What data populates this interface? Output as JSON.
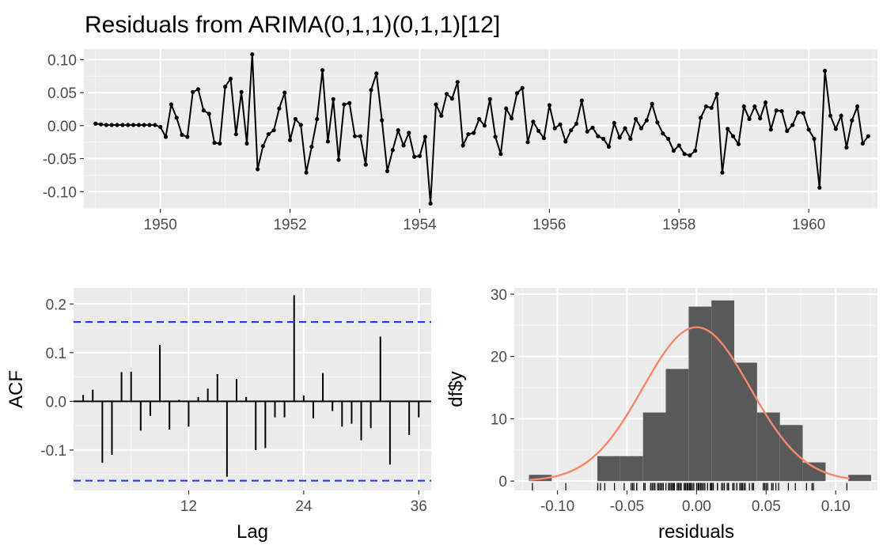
{
  "colors": {
    "panel_bg": "#ebebeb",
    "grid_major": "#ffffff",
    "series": "#000000",
    "ci_lines": "#1f3cff",
    "hist_bars": "#595959",
    "density_curve": "#f4896b"
  },
  "chart_data": [
    {
      "type": "line",
      "title": "Residuals from ARIMA(0,1,1)(0,1,1)[12]",
      "xlabel": "",
      "ylabel": "",
      "xlim": [
        1948.82,
        1961.06
      ],
      "ylim": [
        -0.126,
        0.116
      ],
      "x_ticks": [
        1950,
        1952,
        1954,
        1956,
        1958,
        1960
      ],
      "x_tick_labels": [
        "1950",
        "1952",
        "1954",
        "1956",
        "1958",
        "1960"
      ],
      "y_ticks": [
        0.1,
        0.05,
        0.0,
        -0.05,
        -0.1
      ],
      "y_tick_labels": [
        "0.10",
        "0.05",
        "0.00",
        "-0.05",
        "-0.10"
      ],
      "grid": true,
      "x_start": 1949.0,
      "x_step": 0.0833333,
      "values": [
        0.003,
        0.002,
        0.001,
        0.001,
        0.001,
        0.001,
        0.001,
        0.001,
        0.001,
        0.001,
        0.001,
        0.001,
        -0.002,
        -0.017,
        0.032,
        0.012,
        -0.014,
        -0.017,
        0.051,
        0.055,
        0.023,
        0.018,
        -0.026,
        -0.027,
        0.059,
        0.071,
        -0.013,
        0.051,
        -0.027,
        0.108,
        -0.066,
        -0.031,
        -0.013,
        -0.007,
        0.026,
        0.05,
        -0.022,
        0.01,
        0.001,
        -0.071,
        -0.032,
        0.01,
        0.084,
        -0.024,
        0.04,
        -0.052,
        0.032,
        0.034,
        -0.016,
        -0.016,
        -0.059,
        0.054,
        0.079,
        0.008,
        -0.069,
        -0.037,
        -0.007,
        -0.03,
        -0.011,
        -0.047,
        -0.046,
        -0.017,
        -0.118,
        0.032,
        0.015,
        0.048,
        0.041,
        0.066,
        -0.03,
        -0.013,
        -0.011,
        0.01,
        0.0,
        0.04,
        -0.017,
        -0.043,
        0.026,
        0.011,
        0.049,
        0.057,
        -0.025,
        0.006,
        -0.008,
        -0.019,
        0.031,
        -0.004,
        0.002,
        -0.024,
        -0.007,
        0.003,
        0.038,
        -0.009,
        -0.003,
        -0.016,
        -0.02,
        -0.032,
        0.004,
        -0.018,
        -0.004,
        -0.02,
        0.01,
        -0.004,
        0.008,
        0.033,
        0.005,
        -0.012,
        -0.02,
        -0.038,
        -0.03,
        -0.043,
        -0.045,
        -0.038,
        0.012,
        0.029,
        0.027,
        0.048,
        -0.071,
        -0.005,
        -0.016,
        -0.028,
        0.029,
        0.01,
        0.029,
        0.011,
        0.035,
        -0.006,
        0.023,
        0.022,
        -0.008,
        0.001,
        0.02,
        0.019,
        -0.006,
        -0.02,
        -0.094,
        0.083,
        0.015,
        -0.005,
        0.015,
        -0.033,
        0.008,
        0.029,
        -0.027,
        -0.016
      ]
    },
    {
      "type": "bar",
      "title": "",
      "xlabel": "Lag",
      "ylabel": "ACF",
      "xlim": [
        0,
        37.3
      ],
      "ylim": [
        -0.183,
        0.233
      ],
      "x_ticks": [
        12,
        24,
        36
      ],
      "x_tick_labels": [
        "12",
        "24",
        "36"
      ],
      "y_ticks": [
        0.2,
        0.1,
        0.0,
        -0.1
      ],
      "y_tick_labels": [
        "0.2",
        "0.1",
        "0.0",
        "-0.1"
      ],
      "grid": true,
      "confidence_bounds": [
        0.163,
        -0.163
      ],
      "lags": [
        1,
        2,
        3,
        4,
        5,
        6,
        7,
        8,
        9,
        10,
        11,
        12,
        13,
        14,
        15,
        16,
        17,
        18,
        19,
        20,
        21,
        22,
        23,
        24,
        25,
        26,
        27,
        28,
        29,
        30,
        31,
        32,
        33,
        34,
        35,
        36
      ],
      "values": [
        0.013,
        0.024,
        -0.126,
        -0.11,
        0.06,
        0.061,
        -0.06,
        -0.03,
        0.116,
        -0.058,
        0.003,
        -0.052,
        0.009,
        0.026,
        0.056,
        -0.155,
        0.046,
        0.009,
        -0.1,
        -0.096,
        -0.033,
        -0.033,
        0.218,
        0.012,
        -0.035,
        0.058,
        -0.02,
        -0.052,
        -0.046,
        -0.08,
        -0.055,
        0.133,
        -0.13,
        0.0,
        -0.069,
        -0.033
      ]
    },
    {
      "type": "bar",
      "title": "",
      "xlabel": "residuals",
      "ylabel": "df$y",
      "xlim": [
        -0.131,
        0.13
      ],
      "ylim": [
        -1.5,
        31
      ],
      "x_ticks": [
        -0.1,
        -0.05,
        0.0,
        0.05,
        0.1
      ],
      "x_tick_labels": [
        "-0.10",
        "-0.05",
        "0.00",
        "0.05",
        "0.10"
      ],
      "y_ticks": [
        30,
        20,
        10,
        0
      ],
      "y_tick_labels": [
        "30",
        "20",
        "10",
        "0"
      ],
      "grid": true,
      "bin_start": -0.1205,
      "bin_width": 0.0164,
      "bin_counts": [
        1,
        0,
        0,
        4,
        4,
        11,
        18,
        28,
        29,
        19,
        11,
        9,
        3,
        0,
        1
      ],
      "density_curve": {
        "mean": 0.0,
        "sd": 0.0385,
        "peak_count": 24.7
      }
    }
  ]
}
